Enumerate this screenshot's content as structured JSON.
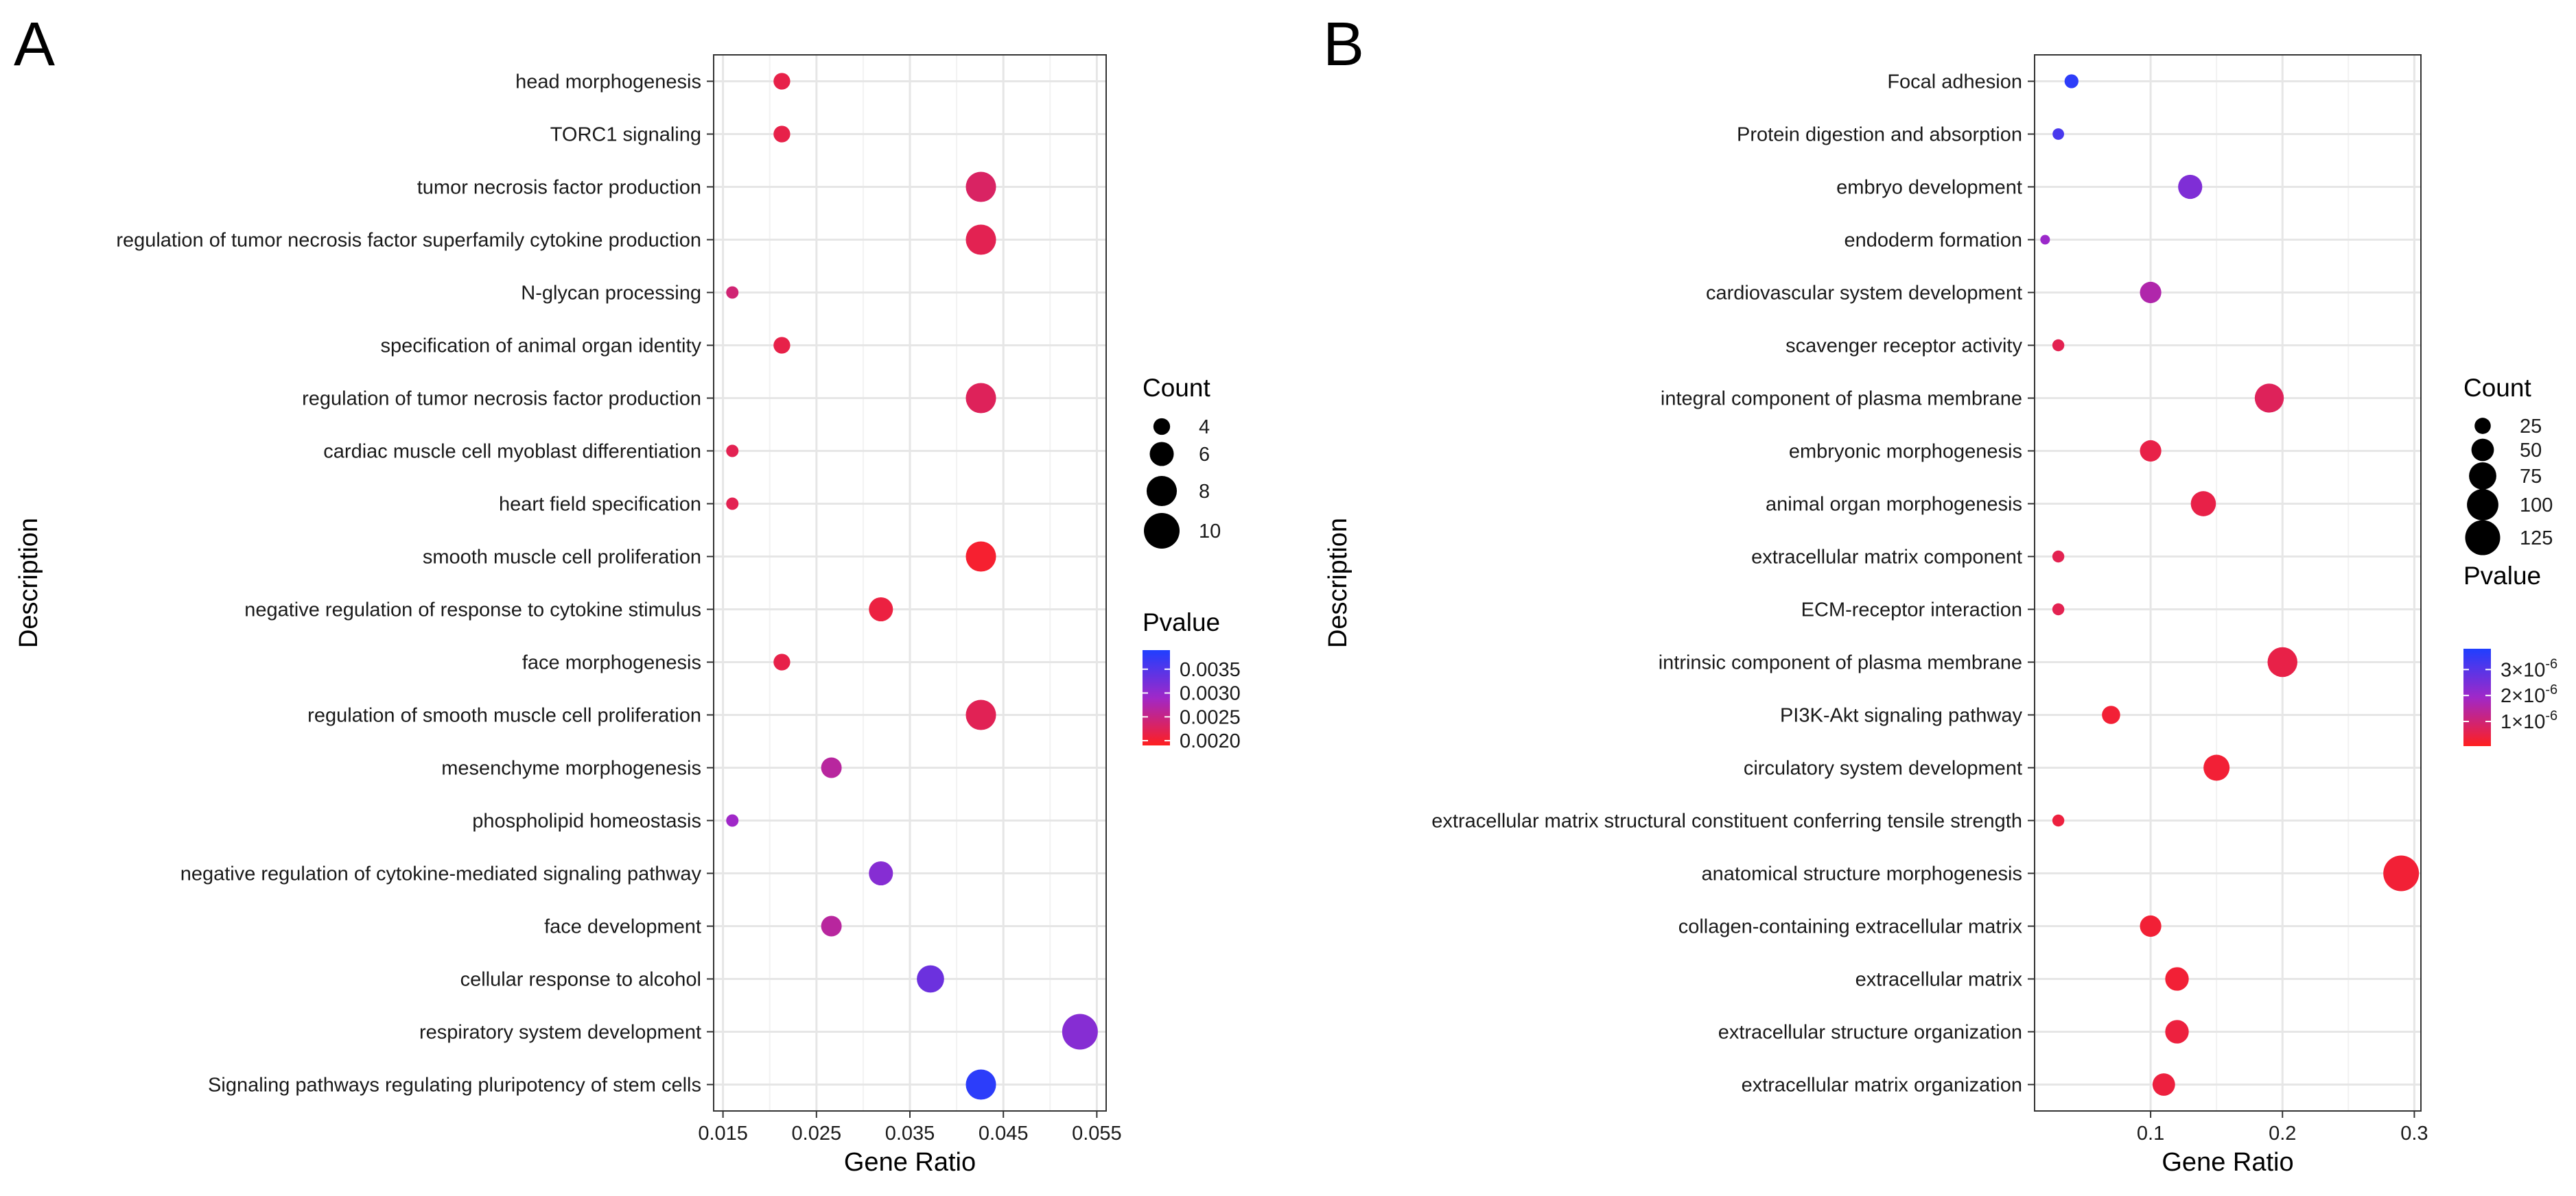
{
  "chart_data": [
    {
      "panel_label": "A",
      "type": "scatter",
      "title": "",
      "xlabel": "Gene Ratio",
      "ylabel": "Description",
      "xlim": [
        0.014,
        0.056
      ],
      "xticks": [
        0.015,
        0.025,
        0.035,
        0.045,
        0.055
      ],
      "xtick_labels": [
        "0.015",
        "0.025",
        "0.035",
        "0.045",
        "0.055"
      ],
      "grid": true,
      "categories": [
        "head morphogenesis",
        "TORC1 signaling",
        "tumor necrosis factor production",
        "regulation of tumor necrosis factor superfamily cytokine production",
        "N-glycan processing",
        "specification of animal organ identity",
        "regulation of tumor necrosis factor production",
        "cardiac muscle cell myoblast differentiation",
        "heart field specification",
        "smooth muscle cell proliferation",
        "negative regulation of response to cytokine stimulus",
        "face morphogenesis",
        "regulation of smooth muscle cell proliferation",
        "mesenchyme morphogenesis",
        "phospholipid homeostasis",
        "negative regulation of cytokine-mediated signaling pathway",
        "face development",
        "cellular response to alcohol",
        "respiratory system development",
        "Signaling pathways regulating pluripotency of stem cells"
      ],
      "gene_ratio": [
        0.0213,
        0.0213,
        0.0426,
        0.0426,
        0.016,
        0.0213,
        0.0426,
        0.016,
        0.016,
        0.0426,
        0.0319,
        0.0213,
        0.0426,
        0.0266,
        0.016,
        0.0319,
        0.0266,
        0.0372,
        0.0532,
        0.0426
      ],
      "count": [
        4,
        4,
        8,
        8,
        3,
        4,
        8,
        3,
        3,
        8,
        6,
        4,
        8,
        5,
        3,
        6,
        5,
        7,
        10,
        8
      ],
      "pvalue": [
        0.00215,
        0.00215,
        0.0023,
        0.0022,
        0.0024,
        0.00215,
        0.00225,
        0.0022,
        0.0022,
        0.002,
        0.0021,
        0.00215,
        0.00222,
        0.00265,
        0.0029,
        0.0031,
        0.00265,
        0.0033,
        0.0031,
        0.0038
      ],
      "size_legend": {
        "title": "Count",
        "values": [
          4,
          6,
          8,
          10
        ],
        "labels": [
          "4",
          "6",
          "8",
          "10"
        ]
      },
      "color_legend": {
        "title": "Pvalue",
        "min": 0.0019,
        "max": 0.0039,
        "ticks": [
          0.002,
          0.0025,
          0.003,
          0.0035
        ],
        "labels": [
          "0.0020",
          "0.0025",
          "0.0030",
          "0.0035"
        ],
        "low_color": "#ff1f1f",
        "high_color": "#1f3fff"
      },
      "legend_position": "right"
    },
    {
      "panel_label": "B",
      "type": "scatter",
      "title": "",
      "xlabel": "Gene Ratio",
      "ylabel": "Description",
      "xlim": [
        0.012,
        0.305
      ],
      "xticks": [
        0.1,
        0.2,
        0.3
      ],
      "xtick_labels": [
        "0.1",
        "0.2",
        "0.3"
      ],
      "grid": true,
      "categories": [
        "Focal adhesion",
        "Protein digestion and absorption",
        "embryo development",
        "endoderm formation",
        "cardiovascular system development",
        "scavenger receptor activity",
        "integral component of plasma membrane",
        "embryonic morphogenesis",
        "animal organ morphogenesis",
        "extracellular matrix component",
        "ECM-receptor interaction",
        "intrinsic component of plasma membrane",
        "PI3K-Akt signaling pathway",
        "circulatory system development",
        "extracellular matrix structural constituent conferring tensile strength",
        "anatomical structure morphogenesis",
        "collagen-containing extracellular matrix",
        "extracellular matrix",
        "extracellular structure organization",
        "extracellular matrix organization"
      ],
      "gene_ratio": [
        0.04,
        0.03,
        0.13,
        0.02,
        0.1,
        0.03,
        0.19,
        0.1,
        0.14,
        0.03,
        0.03,
        0.2,
        0.07,
        0.15,
        0.03,
        0.29,
        0.1,
        0.12,
        0.12,
        0.11
      ],
      "count": [
        18,
        12,
        58,
        8,
        45,
        13,
        85,
        45,
        63,
        13,
        13,
        90,
        32,
        68,
        13,
        130,
        45,
        55,
        55,
        50
      ],
      "pvalue": [
        3.6e-06,
        3.2e-06,
        2.4e-06,
        2e-06,
        1.6e-06,
        6e-07,
        7e-07,
        5e-07,
        5e-07,
        6e-07,
        6e-07,
        5e-07,
        3e-07,
        3e-07,
        4e-07,
        3e-07,
        3e-07,
        3e-07,
        4e-07,
        4e-07
      ],
      "size_legend": {
        "title": "Count",
        "values": [
          25,
          50,
          75,
          100,
          125
        ],
        "labels": [
          "25",
          "50",
          "75",
          "100",
          "125"
        ]
      },
      "color_legend": {
        "title": "Pvalue",
        "min": 5e-08,
        "max": 3.8e-06,
        "ticks": [
          1e-06,
          2e-06,
          3e-06
        ],
        "labels": [
          "1×10",
          "2×10",
          "3×10"
        ],
        "exponent": "-6",
        "low_color": "#ff1f1f",
        "high_color": "#1f3fff"
      },
      "legend_position": "right"
    }
  ]
}
